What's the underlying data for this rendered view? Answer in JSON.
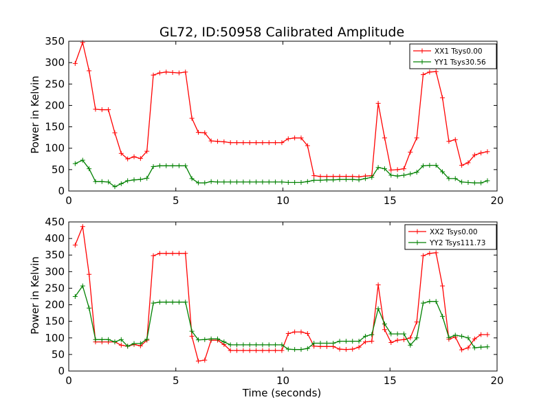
{
  "chart_data": [
    {
      "type": "line",
      "title": "GL72, ID:50958 Calibrated Amplitude",
      "xlabel": "",
      "ylabel": "Power in Kelvin",
      "xlim": [
        0,
        20
      ],
      "ylim": [
        0,
        350
      ],
      "xticks": [
        0,
        5,
        10,
        15,
        20
      ],
      "yticks": [
        0,
        50,
        100,
        150,
        200,
        250,
        300,
        350
      ],
      "legend_position": "top-right",
      "x": [
        0.3,
        0.65,
        0.95,
        1.25,
        1.55,
        1.85,
        2.15,
        2.45,
        2.75,
        3.05,
        3.35,
        3.65,
        3.95,
        4.25,
        4.55,
        4.85,
        5.15,
        5.45,
        5.75,
        6.05,
        6.35,
        6.65,
        6.95,
        7.25,
        7.55,
        7.85,
        8.15,
        8.45,
        8.75,
        9.05,
        9.35,
        9.65,
        9.95,
        10.25,
        10.55,
        10.85,
        11.15,
        11.45,
        11.75,
        12.05,
        12.35,
        12.65,
        12.95,
        13.25,
        13.55,
        13.85,
        14.15,
        14.45,
        14.75,
        15.05,
        15.35,
        15.65,
        15.95,
        16.25,
        16.55,
        16.85,
        17.15,
        17.45,
        17.75,
        18.05,
        18.35,
        18.65,
        18.95,
        19.25,
        19.55
      ],
      "series": [
        {
          "name": "XX1 Tsys0.00",
          "color": "#ff0000",
          "values": [
            298,
            347,
            281,
            191,
            190,
            190,
            136,
            88,
            75,
            80,
            76,
            93,
            271,
            276,
            278,
            277,
            276,
            278,
            170,
            137,
            136,
            117,
            116,
            115,
            113,
            113,
            113,
            113,
            113,
            113,
            113,
            113,
            113,
            122,
            124,
            124,
            106,
            36,
            34,
            34,
            34,
            34,
            34,
            34,
            33,
            35,
            36,
            205,
            124,
            49,
            50,
            52,
            91,
            124,
            272,
            278,
            279,
            218,
            116,
            120,
            60,
            66,
            84,
            89,
            92
          ]
        },
        {
          "name": "YY1 Tsys30.56",
          "color": "#008000",
          "values": [
            64,
            72,
            52,
            22,
            22,
            21,
            10,
            17,
            24,
            26,
            27,
            30,
            57,
            59,
            59,
            59,
            59,
            59,
            29,
            19,
            19,
            22,
            21,
            21,
            21,
            21,
            21,
            21,
            21,
            21,
            21,
            21,
            21,
            20,
            20,
            20,
            22,
            25,
            25,
            26,
            26,
            27,
            27,
            27,
            26,
            29,
            32,
            55,
            52,
            37,
            35,
            37,
            40,
            44,
            59,
            60,
            60,
            45,
            29,
            29,
            21,
            20,
            19,
            19,
            24
          ]
        }
      ]
    },
    {
      "type": "line",
      "title": "",
      "xlabel": "Time (seconds)",
      "ylabel": "Power in Kelvin",
      "xlim": [
        0,
        20
      ],
      "ylim": [
        0,
        450
      ],
      "xticks": [
        0,
        5,
        10,
        15,
        20
      ],
      "yticks": [
        0,
        50,
        100,
        150,
        200,
        250,
        300,
        350,
        400,
        450
      ],
      "legend_position": "top-right",
      "x": [
        0.3,
        0.65,
        0.95,
        1.25,
        1.55,
        1.85,
        2.15,
        2.45,
        2.75,
        3.05,
        3.35,
        3.65,
        3.95,
        4.25,
        4.55,
        4.85,
        5.15,
        5.45,
        5.75,
        6.05,
        6.35,
        6.65,
        6.95,
        7.25,
        7.55,
        7.85,
        8.15,
        8.45,
        8.75,
        9.05,
        9.35,
        9.65,
        9.95,
        10.25,
        10.55,
        10.85,
        11.15,
        11.45,
        11.75,
        12.05,
        12.35,
        12.65,
        12.95,
        13.25,
        13.55,
        13.85,
        14.15,
        14.45,
        14.75,
        15.05,
        15.35,
        15.65,
        15.95,
        16.25,
        16.55,
        16.85,
        17.15,
        17.45,
        17.75,
        18.05,
        18.35,
        18.65,
        18.95,
        19.25,
        19.55
      ],
      "series": [
        {
          "name": "XX2 Tsys0.00",
          "color": "#ff0000",
          "values": [
            380,
            436,
            292,
            88,
            88,
            88,
            88,
            78,
            75,
            80,
            76,
            93,
            348,
            355,
            355,
            355,
            355,
            355,
            105,
            30,
            33,
            93,
            93,
            80,
            62,
            62,
            62,
            62,
            62,
            62,
            62,
            62,
            62,
            113,
            118,
            118,
            113,
            75,
            74,
            74,
            74,
            66,
            65,
            66,
            72,
            88,
            90,
            260,
            125,
            86,
            93,
            95,
            100,
            148,
            348,
            355,
            357,
            257,
            96,
            103,
            64,
            70,
            97,
            110,
            110
          ]
        },
        {
          "name": "YY2 Tsys111.73",
          "color": "#008000",
          "values": [
            225,
            257,
            190,
            95,
            95,
            95,
            88,
            95,
            75,
            83,
            83,
            96,
            205,
            208,
            208,
            208,
            208,
            208,
            120,
            94,
            95,
            97,
            97,
            88,
            79,
            79,
            79,
            79,
            79,
            79,
            79,
            79,
            79,
            66,
            65,
            65,
            68,
            84,
            84,
            84,
            84,
            90,
            90,
            90,
            90,
            105,
            110,
            188,
            142,
            112,
            112,
            112,
            78,
            100,
            205,
            210,
            210,
            165,
            101,
            108,
            105,
            100,
            70,
            72,
            73
          ]
        }
      ]
    }
  ]
}
